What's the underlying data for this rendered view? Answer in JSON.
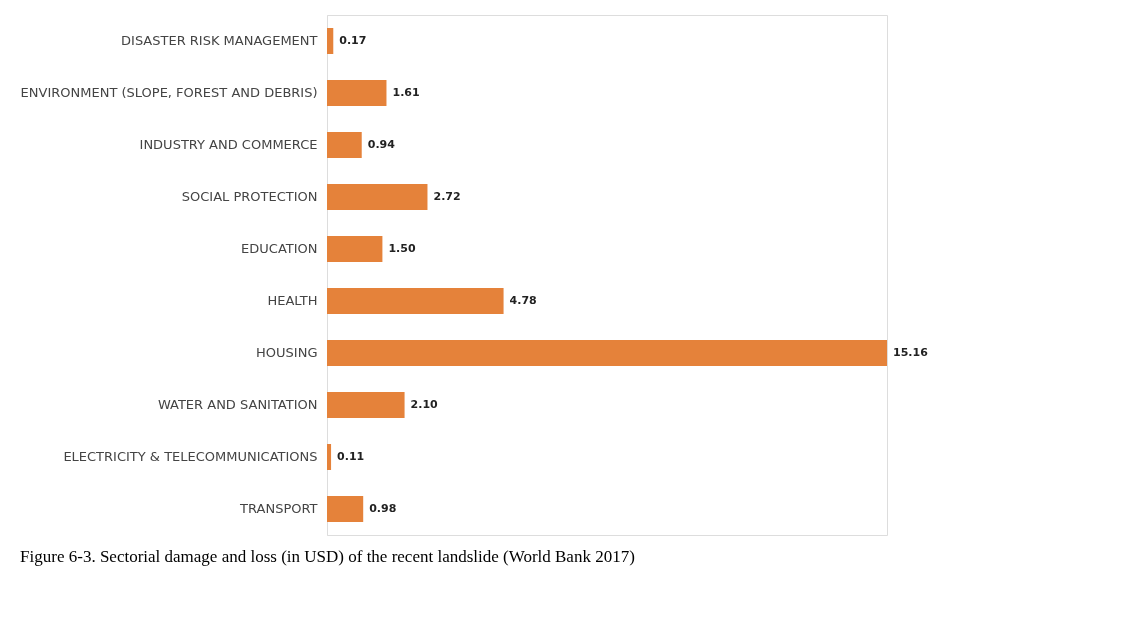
{
  "chart_data": {
    "type": "bar",
    "orientation": "horizontal",
    "value_labels": [
      "0.17",
      "1.61",
      "0.94",
      "2.72",
      "1.50",
      "4.78",
      "15.16",
      "2.10",
      "0.11",
      "0.98"
    ],
    "categories": [
      "DISASTER RISK MANAGEMENT",
      "ENVIRONMENT (SLOPE, FOREST AND DEBRIS)",
      "INDUSTRY AND COMMERCE",
      "SOCIAL PROTECTION",
      "EDUCATION",
      "HEALTH",
      "HOUSING",
      "WATER AND SANITATION",
      "ELECTRICITY & TELECOMMUNICATIONS",
      "TRANSPORT"
    ],
    "values": [
      0.17,
      1.61,
      0.94,
      2.72,
      1.5,
      4.78,
      15.16,
      2.1,
      0.11,
      0.98
    ],
    "color": "#e5823a",
    "annotations": [
      "Figure 6-3. Sectorial damage and loss (in USD) of the recent landslide (World Bank 2017)"
    ]
  }
}
